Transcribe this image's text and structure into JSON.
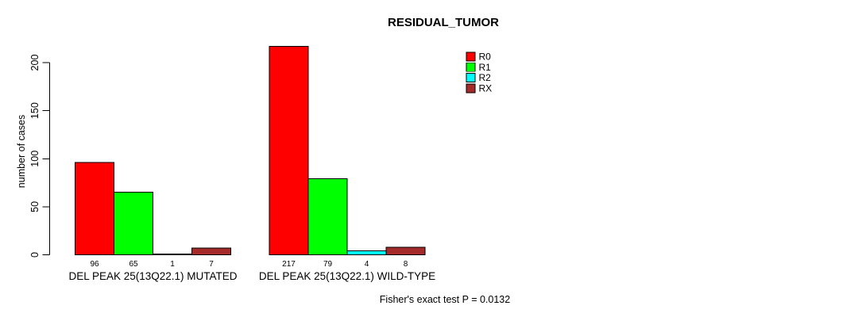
{
  "chart_data": {
    "type": "bar",
    "title": "RESIDUAL_TUMOR",
    "ylabel": "number of cases",
    "xlabel": "",
    "ylim": [
      0,
      220
    ],
    "yticks": [
      0,
      50,
      100,
      150,
      200
    ],
    "grid": false,
    "legend_position": "top-right",
    "categories": [
      "DEL PEAK 25(13Q22.1) MUTATED",
      "DEL PEAK 25(13Q22.1) WILD-TYPE"
    ],
    "series": [
      {
        "name": "R0",
        "color": "#ff0000",
        "values": [
          96,
          217
        ]
      },
      {
        "name": "R1",
        "color": "#00ff00",
        "values": [
          65,
          79
        ]
      },
      {
        "name": "R2",
        "color": "#00ffff",
        "values": [
          1,
          4
        ]
      },
      {
        "name": "RX",
        "color": "#a52a2a",
        "values": [
          7,
          8
        ]
      }
    ],
    "bar_value_labels": [
      [
        "96",
        "65",
        "1",
        "7"
      ],
      [
        "217",
        "79",
        "4",
        "8"
      ]
    ],
    "annotation": "Fisher's exact test P = 0.0132",
    "text_color": "#000000",
    "bar_border_color": "#000000",
    "background_color": "#ffffff"
  }
}
